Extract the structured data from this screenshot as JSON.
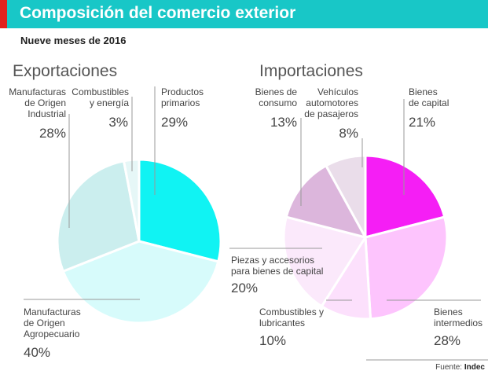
{
  "header": {
    "title": "Composición del comercio exterior",
    "accent_color": "#e2221d",
    "bar_color": "#18c7c7"
  },
  "subtitle": "Nueve meses de 2016",
  "source": {
    "label": "Fuente:",
    "value": "Indec"
  },
  "chart_data": [
    {
      "type": "pie",
      "title": "Exportaciones",
      "slices": [
        {
          "label_lines": [
            "Productos",
            "primarios"
          ],
          "pct_label": "29%",
          "value": 29,
          "color": "#10f3f3"
        },
        {
          "label_lines": [
            "Manufacturas",
            "de Origen",
            "Agropecuario"
          ],
          "pct_label": "40%",
          "value": 40,
          "color": "#d7fbfb"
        },
        {
          "label_lines": [
            "Manufacturas",
            "de Origen",
            "Industrial"
          ],
          "pct_label": "28%",
          "value": 28,
          "color": "#cbeeee"
        },
        {
          "label_lines": [
            "Combustibles",
            "y energía"
          ],
          "pct_label": "3%",
          "value": 3,
          "color": "#e6f7f7"
        }
      ]
    },
    {
      "type": "pie",
      "title": "Importaciones",
      "slices": [
        {
          "label_lines": [
            "Bienes",
            "de capital"
          ],
          "pct_label": "21%",
          "value": 21,
          "color": "#f51ef5"
        },
        {
          "label_lines": [
            "Bienes",
            "intermedios"
          ],
          "pct_label": "28%",
          "value": 28,
          "color": "#fdc4fd"
        },
        {
          "label_lines": [
            "Combustibles y",
            "lubricantes"
          ],
          "pct_label": "10%",
          "value": 10,
          "color": "#fce0fc"
        },
        {
          "label_lines": [
            "Piezas y accesorios",
            "para bienes de capital"
          ],
          "pct_label": "20%",
          "value": 20,
          "color": "#fbe9fb"
        },
        {
          "label_lines": [
            "Bienes de",
            "consumo"
          ],
          "pct_label": "13%",
          "value": 13,
          "color": "#dcb6dc"
        },
        {
          "label_lines": [
            "Vehículos",
            "automotores",
            "de pasajeros"
          ],
          "pct_label": "8%",
          "value": 8,
          "color": "#eaddea"
        }
      ]
    }
  ]
}
